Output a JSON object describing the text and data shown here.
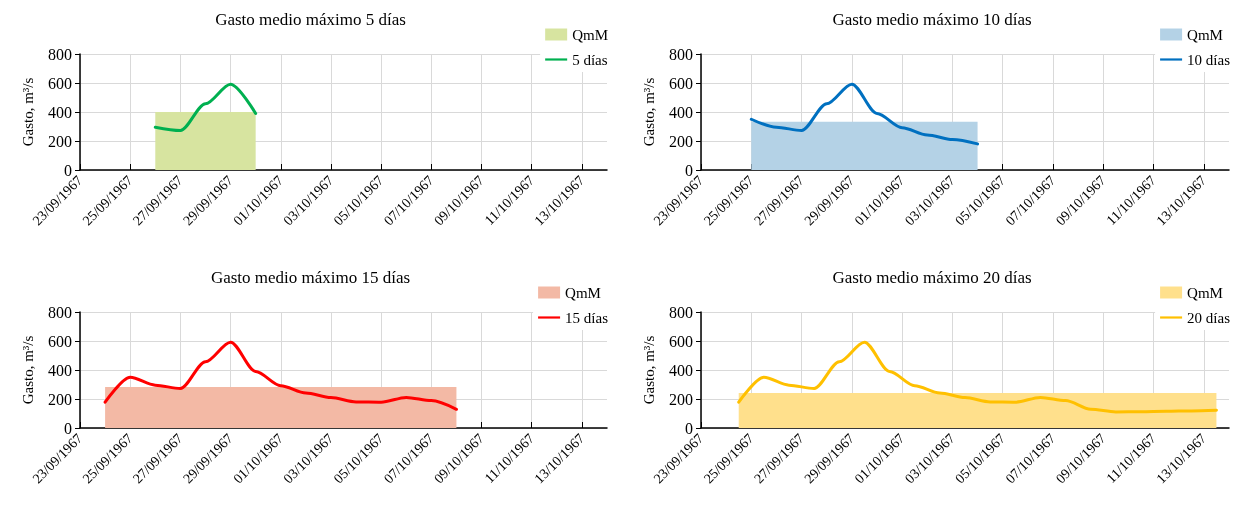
{
  "chart_data": [
    {
      "type": "line",
      "title": "Gasto medio máximo 5 días",
      "ylabel": "Gasto, m³/s",
      "xlim": [
        "1967-09-23",
        "1967-10-14"
      ],
      "xticks": [
        {
          "value": "1967-09-23",
          "label": "23/09/1967"
        },
        {
          "value": "1967-09-25",
          "label": "25/09/1967"
        },
        {
          "value": "1967-09-27",
          "label": "27/09/1967"
        },
        {
          "value": "1967-09-29",
          "label": "29/09/1967"
        },
        {
          "value": "1967-10-01",
          "label": "01/10/1967"
        },
        {
          "value": "1967-10-03",
          "label": "03/10/1967"
        },
        {
          "value": "1967-10-05",
          "label": "05/10/1967"
        },
        {
          "value": "1967-10-07",
          "label": "07/10/1967"
        },
        {
          "value": "1967-10-09",
          "label": "09/10/1967"
        },
        {
          "value": "1967-10-11",
          "label": "11/10/1967"
        },
        {
          "value": "1967-10-13",
          "label": "13/10/1967"
        }
      ],
      "ylim": [
        0,
        800
      ],
      "yticks": [
        0,
        200,
        400,
        600,
        800
      ],
      "grid": true,
      "legend": "top right",
      "series": [
        {
          "name": "QmM",
          "type": "area",
          "color": "#d7e4a0",
          "x": [
            "1967-09-26",
            "1967-09-30"
          ],
          "values": [
            400,
            400
          ]
        },
        {
          "name": "5 días",
          "color": "#00b050",
          "x": [
            "1967-09-26",
            "1967-09-27",
            "1967-09-28",
            "1967-09-29",
            "1967-09-30"
          ],
          "values": [
            295,
            272,
            457,
            592,
            390
          ]
        }
      ]
    },
    {
      "type": "line",
      "title": "Gasto medio máximo 10 días",
      "ylabel": "Gasto, m³/s",
      "xlim": [
        "1967-09-23",
        "1967-10-14"
      ],
      "xticks": [
        {
          "value": "1967-09-23",
          "label": "23/09/1967"
        },
        {
          "value": "1967-09-25",
          "label": "25/09/1967"
        },
        {
          "value": "1967-09-27",
          "label": "27/09/1967"
        },
        {
          "value": "1967-09-29",
          "label": "29/09/1967"
        },
        {
          "value": "1967-10-01",
          "label": "01/10/1967"
        },
        {
          "value": "1967-10-03",
          "label": "03/10/1967"
        },
        {
          "value": "1967-10-05",
          "label": "05/10/1967"
        },
        {
          "value": "1967-10-07",
          "label": "07/10/1967"
        },
        {
          "value": "1967-10-09",
          "label": "09/10/1967"
        },
        {
          "value": "1967-10-11",
          "label": "11/10/1967"
        },
        {
          "value": "1967-10-13",
          "label": "13/10/1967"
        }
      ],
      "ylim": [
        0,
        800
      ],
      "yticks": [
        0,
        200,
        400,
        600,
        800
      ],
      "grid": true,
      "legend": "top right",
      "series": [
        {
          "name": "QmM",
          "type": "area",
          "color": "#b4d2e6",
          "x": [
            "1967-09-25",
            "1967-10-04"
          ],
          "values": [
            333,
            333
          ]
        },
        {
          "name": "10 días",
          "color": "#0070c0",
          "x": [
            "1967-09-25",
            "1967-09-26",
            "1967-09-27",
            "1967-09-28",
            "1967-09-29",
            "1967-09-30",
            "1967-10-01",
            "1967-10-02",
            "1967-10-03",
            "1967-10-04"
          ],
          "values": [
            350,
            295,
            272,
            457,
            592,
            390,
            292,
            242,
            210,
            180
          ]
        }
      ]
    },
    {
      "type": "line",
      "title": "Gasto medio máximo 15 días",
      "ylabel": "Gasto, m³/s",
      "xlim": [
        "1967-09-23",
        "1967-10-14"
      ],
      "xticks": [
        {
          "value": "1967-09-23",
          "label": "23/09/1967"
        },
        {
          "value": "1967-09-25",
          "label": "25/09/1967"
        },
        {
          "value": "1967-09-27",
          "label": "27/09/1967"
        },
        {
          "value": "1967-09-29",
          "label": "29/09/1967"
        },
        {
          "value": "1967-10-01",
          "label": "01/10/1967"
        },
        {
          "value": "1967-10-03",
          "label": "03/10/1967"
        },
        {
          "value": "1967-10-05",
          "label": "05/10/1967"
        },
        {
          "value": "1967-10-07",
          "label": "07/10/1967"
        },
        {
          "value": "1967-10-09",
          "label": "09/10/1967"
        },
        {
          "value": "1967-10-11",
          "label": "11/10/1967"
        },
        {
          "value": "1967-10-13",
          "label": "13/10/1967"
        }
      ],
      "ylim": [
        0,
        800
      ],
      "yticks": [
        0,
        200,
        400,
        600,
        800
      ],
      "grid": true,
      "legend": "top right",
      "series": [
        {
          "name": "QmM",
          "type": "area",
          "color": "#f3b9a5",
          "x": [
            "1967-09-24",
            "1967-10-08"
          ],
          "values": [
            282,
            282
          ]
        },
        {
          "name": "15 días",
          "color": "#ff0000",
          "x": [
            "1967-09-24",
            "1967-09-25",
            "1967-09-26",
            "1967-09-27",
            "1967-09-28",
            "1967-09-29",
            "1967-09-30",
            "1967-10-01",
            "1967-10-02",
            "1967-10-03",
            "1967-10-04",
            "1967-10-05",
            "1967-10-06",
            "1967-10-07",
            "1967-10-08"
          ],
          "values": [
            178,
            350,
            295,
            272,
            457,
            592,
            390,
            292,
            242,
            210,
            180,
            178,
            211,
            189,
            129
          ]
        }
      ]
    },
    {
      "type": "line",
      "title": "Gasto medio máximo 20 días",
      "ylabel": "Gasto, m³/s",
      "xlim": [
        "1967-09-23",
        "1967-10-14"
      ],
      "xticks": [
        {
          "value": "1967-09-23",
          "label": "23/09/1967"
        },
        {
          "value": "1967-09-25",
          "label": "25/09/1967"
        },
        {
          "value": "1967-09-27",
          "label": "27/09/1967"
        },
        {
          "value": "1967-09-29",
          "label": "29/09/1967"
        },
        {
          "value": "1967-10-01",
          "label": "01/10/1967"
        },
        {
          "value": "1967-10-03",
          "label": "03/10/1967"
        },
        {
          "value": "1967-10-05",
          "label": "05/10/1967"
        },
        {
          "value": "1967-10-07",
          "label": "07/10/1967"
        },
        {
          "value": "1967-10-09",
          "label": "09/10/1967"
        },
        {
          "value": "1967-10-11",
          "label": "11/10/1967"
        },
        {
          "value": "1967-10-13",
          "label": "13/10/1967"
        }
      ],
      "ylim": [
        0,
        800
      ],
      "yticks": [
        0,
        200,
        400,
        600,
        800
      ],
      "grid": true,
      "legend": "top right",
      "series": [
        {
          "name": "QmM",
          "type": "area",
          "color": "#ffe08c",
          "x": [
            "1967-09-24T12:00",
            "1967-10-13T12:00"
          ],
          "values": [
            242,
            242
          ]
        },
        {
          "name": "20 días",
          "color": "#ffc000",
          "x": [
            "1967-09-24T12:00",
            "1967-09-25T12:00",
            "1967-09-26T12:00",
            "1967-09-27T12:00",
            "1967-09-28T12:00",
            "1967-09-29T12:00",
            "1967-09-30T12:00",
            "1967-10-01T12:00",
            "1967-10-02T12:00",
            "1967-10-03T12:00",
            "1967-10-04T12:00",
            "1967-10-05T12:00",
            "1967-10-06T12:00",
            "1967-10-07T12:00",
            "1967-10-08T12:00",
            "1967-10-09T12:00",
            "1967-10-10T12:00",
            "1967-10-11T12:00",
            "1967-10-12T12:00",
            "1967-10-13T12:00"
          ],
          "values": [
            178,
            350,
            295,
            272,
            457,
            592,
            390,
            292,
            242,
            210,
            180,
            178,
            211,
            189,
            129,
            111,
            112,
            115,
            118,
            122
          ]
        }
      ]
    }
  ]
}
